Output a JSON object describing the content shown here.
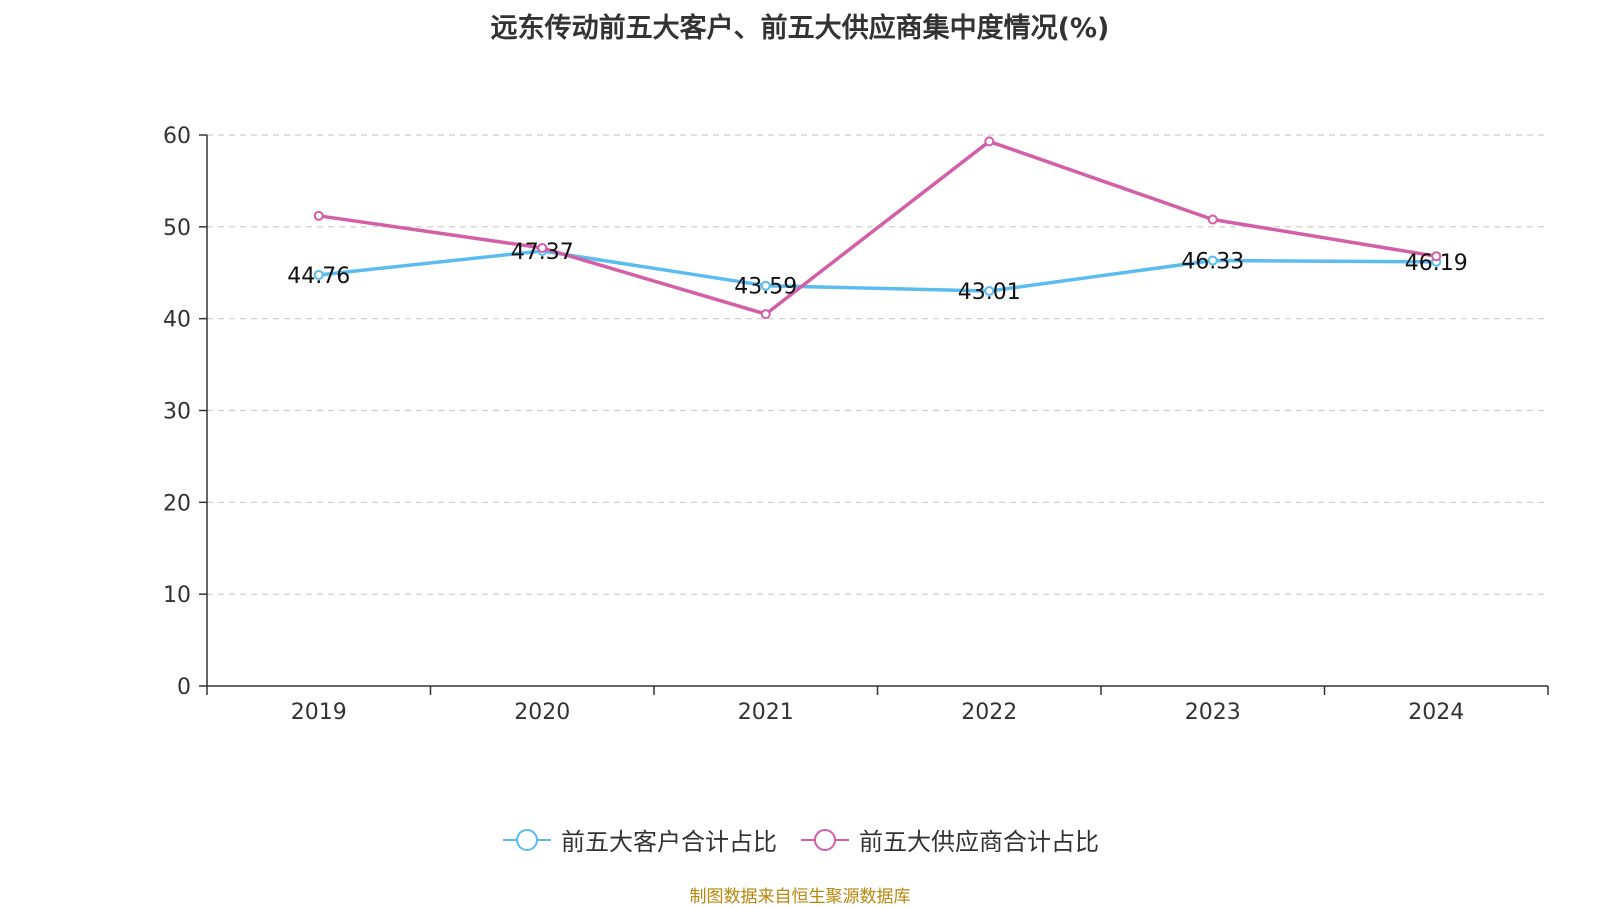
{
  "chart_data": {
    "type": "line",
    "title": "远东传动前五大客户、前五大供应商集中度情况(%)",
    "categories": [
      "2019",
      "2020",
      "2021",
      "2022",
      "2023",
      "2024"
    ],
    "ylim": [
      0,
      60
    ],
    "yticks": [
      "0",
      "10",
      "20",
      "30",
      "40",
      "50",
      "60"
    ],
    "grid": true,
    "legend_position": "bottom-center",
    "series": [
      {
        "name": "前五大客户合计占比",
        "color": "#5bbcf0",
        "values": [
          44.76,
          47.37,
          43.59,
          43.01,
          46.33,
          46.19
        ],
        "labels": [
          "44.76",
          "47.37",
          "43.59",
          "43.01",
          "46.33",
          "46.19"
        ]
      },
      {
        "name": "前五大供应商合计占比",
        "color": "#d35fa8",
        "values": [
          51.2,
          47.7,
          40.5,
          59.3,
          50.8,
          46.8
        ]
      }
    ]
  },
  "footer": {
    "source": "制图数据来自恒生聚源数据库"
  }
}
